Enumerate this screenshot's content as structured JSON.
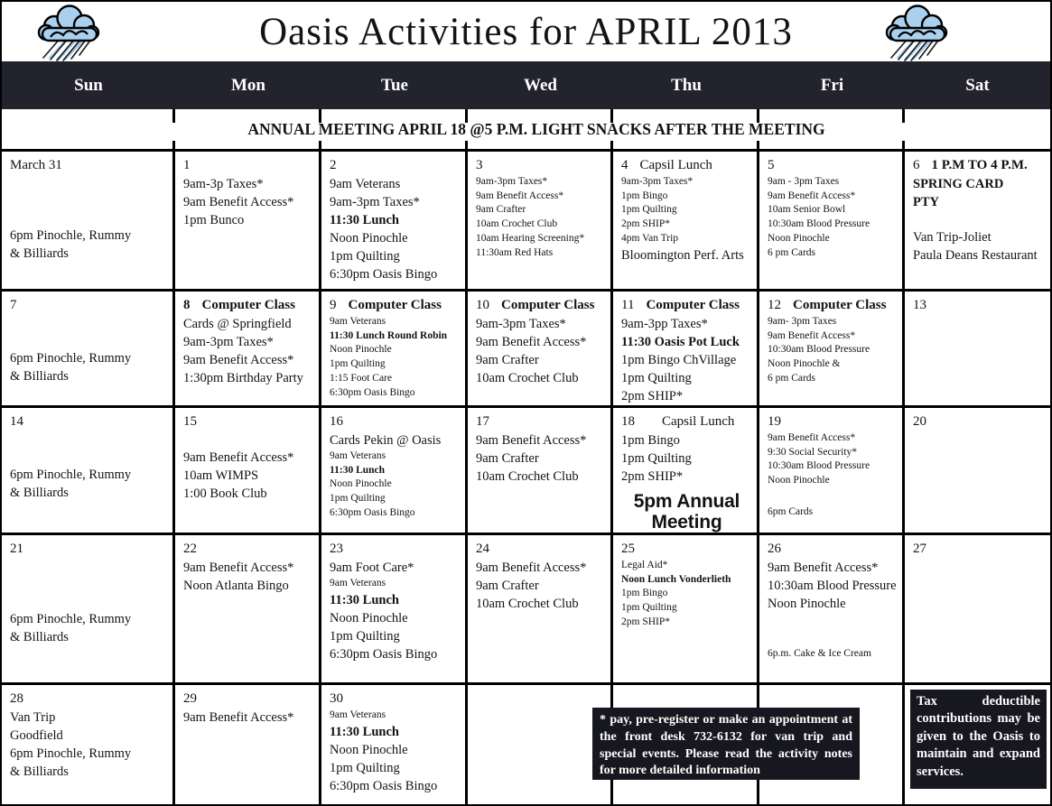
{
  "title": "Oasis Activities for APRIL 2013",
  "banner": "ANNUAL MEETING  APRIL 18  @5 P.M. LIGHT SNACKS AFTER THE MEETING",
  "day_headers": [
    "Sun",
    "Mon",
    "Tue",
    "Wed",
    "Thu",
    "Fri",
    "Sat"
  ],
  "icons": {
    "left": "rain-cloud-icon",
    "right": "rain-cloud-icon"
  },
  "colors": {
    "header_bar": "#23232e",
    "note_box_bg": "#17171f",
    "cloud_blue": "#abd0ee",
    "text": "#131313"
  },
  "notes": {
    "registration": "* pay, pre-register or make an appointment at the front desk 732-6132 for van trip and special events.  Please read the activity notes for more detailed    information"
  },
  "weeks": [
    {
      "cells": [
        {
          "date": "March 31",
          "lines": [
            {
              "t": ""
            },
            {
              "t": ""
            },
            {
              "t": ""
            },
            {
              "t": "6pm Pinochle, Rummy"
            },
            {
              "t": "& Billiards"
            }
          ]
        },
        {
          "date": "1",
          "lines": [
            {
              "t": "9am-3p Taxes*"
            },
            {
              "t": "9am Benefit Access*"
            },
            {
              "t": "1pm Bunco"
            }
          ]
        },
        {
          "date": "2",
          "lines": [
            {
              "t": "9am Veterans"
            },
            {
              "t": "9am-3pm Taxes*"
            },
            {
              "t": "11:30 Lunch",
              "b": true
            },
            {
              "t": "Noon Pinochle"
            },
            {
              "t": "1pm Quilting"
            },
            {
              "t": "6:30pm Oasis Bingo"
            }
          ]
        },
        {
          "date": "3",
          "lines": [
            {
              "t": "9am-3pm Taxes*",
              "s": true
            },
            {
              "t": "9am Benefit Access*",
              "s": true
            },
            {
              "t": "9am Crafter",
              "s": true
            },
            {
              "t": "10am Crochet Club",
              "s": true
            },
            {
              "t": "10am Hearing Screening*",
              "s": true
            },
            {
              "t": "11:30am Red Hats",
              "s": true
            }
          ]
        },
        {
          "date": "4",
          "note": "Capsil Lunch",
          "lines": [
            {
              "t": "9am-3pm Taxes*",
              "s": true
            },
            {
              "t": "1pm Bingo",
              "s": true
            },
            {
              "t": "1pm Quilting",
              "s": true
            },
            {
              "t": "2pm SHIP*",
              "s": true
            },
            {
              "t": "4pm Van Trip",
              "s": true
            },
            {
              "t": "Bloomington Perf. Arts"
            }
          ]
        },
        {
          "date": "5",
          "lines": [
            {
              "t": "9am - 3pm Taxes",
              "s": true
            },
            {
              "t": "9am Benefit Access*",
              "s": true
            },
            {
              "t": "10am Senior Bowl",
              "s": true
            },
            {
              "t": "10:30am Blood Pressure",
              "s": true
            },
            {
              "t": "Noon Pinochle",
              "s": true
            },
            {
              "t": "6 pm Cards",
              "s": true
            }
          ]
        },
        {
          "date": "6",
          "note": "1 P.M TO 4 P.M.",
          "note_bold": true,
          "lines": [
            {
              "t": "SPRING CARD",
              "b": true
            },
            {
              "t": "PTY",
              "b": true
            },
            {
              "t": ""
            },
            {
              "t": "Van Trip-Joliet"
            },
            {
              "t": "Paula Deans Restaurant"
            }
          ]
        }
      ]
    },
    {
      "cells": [
        {
          "date": "7",
          "lines": [
            {
              "t": ""
            },
            {
              "t": ""
            },
            {
              "t": "6pm Pinochle, Rummy"
            },
            {
              "t": "& Billiards"
            }
          ]
        },
        {
          "date": "8",
          "date_bold": true,
          "note": "Computer Class",
          "note_bold": true,
          "lines": [
            {
              "t": "Cards @ Springfield"
            },
            {
              "t": "9am-3pm Taxes*"
            },
            {
              "t": "9am Benefit Access*"
            },
            {
              "t": "1:30pm Birthday Party"
            }
          ]
        },
        {
          "date": "9",
          "note": "Computer Class",
          "note_bold": true,
          "lines": [
            {
              "t": "9am Veterans",
              "s": true
            },
            {
              "t": "11:30 Lunch Round Robin",
              "s": true,
              "b": true
            },
            {
              "t": "Noon Pinochle",
              "s": true
            },
            {
              "t": "1pm Quilting",
              "s": true
            },
            {
              "t": "1:15 Foot Care",
              "s": true
            },
            {
              "t": "6:30pm Oasis Bingo",
              "s": true
            }
          ]
        },
        {
          "date": "10",
          "note": "Computer Class",
          "note_bold": true,
          "lines": [
            {
              "t": "9am-3pm Taxes*"
            },
            {
              "t": "9am Benefit Access*"
            },
            {
              "t": "9am Crafter"
            },
            {
              "t": "10am Crochet Club"
            }
          ]
        },
        {
          "date": "11",
          "note": "Computer Class",
          "note_bold": true,
          "lines": [
            {
              "t": "9am-3pp Taxes*"
            },
            {
              "t": "11:30 Oasis Pot Luck",
              "b": true
            },
            {
              "t": "1pm Bingo ChVillage"
            },
            {
              "t": "1pm Quilting"
            },
            {
              "t": "2pm SHIP*"
            }
          ]
        },
        {
          "date": "12",
          "note": "Computer Class",
          "note_bold": true,
          "lines": [
            {
              "t": "9am- 3pm Taxes",
              "s": true
            },
            {
              "t": "9am Benefit Access*",
              "s": true
            },
            {
              "t": "10:30am Blood Pressure",
              "s": true
            },
            {
              "t": "Noon Pinochle  &",
              "s": true
            },
            {
              "t": "6 pm Cards",
              "s": true
            }
          ]
        },
        {
          "date": "13",
          "lines": []
        }
      ]
    },
    {
      "cells": [
        {
          "date": "14",
          "lines": [
            {
              "t": ""
            },
            {
              "t": ""
            },
            {
              "t": "6pm Pinochle, Rummy"
            },
            {
              "t": "& Billiards"
            }
          ]
        },
        {
          "date": "15",
          "lines": [
            {
              "t": ""
            },
            {
              "t": "9am Benefit Access*"
            },
            {
              "t": "10am WIMPS"
            },
            {
              "t": "1:00 Book Club"
            }
          ]
        },
        {
          "date": "16",
          "lines": [
            {
              "t": "Cards  Pekin @ Oasis"
            },
            {
              "t": "9am Veterans",
              "s": true
            },
            {
              "t": "11:30 Lunch",
              "s": true,
              "b": true
            },
            {
              "t": "Noon Pinochle",
              "s": true
            },
            {
              "t": "1pm Quilting",
              "s": true
            },
            {
              "t": "6:30pm Oasis Bingo",
              "s": true
            }
          ]
        },
        {
          "date": "17",
          "lines": [
            {
              "t": "9am Benefit Access*"
            },
            {
              "t": "9am Crafter"
            },
            {
              "t": "10am Crochet Club"
            }
          ]
        },
        {
          "date": "18",
          "note": "Capsil Lunch",
          "note_wide": true,
          "lines": [
            {
              "t": "1pm Bingo"
            },
            {
              "t": "1pm Quilting"
            },
            {
              "t": "2pm SHIP*"
            }
          ],
          "big_note": "5pm Annual Meeting"
        },
        {
          "date": "19",
          "lines": [
            {
              "t": "9am Benefit Access*",
              "s": true
            },
            {
              "t": "9:30 Social Security*",
              "s": true
            },
            {
              "t": "10:30am Blood Pressure",
              "s": true
            },
            {
              "t": "Noon Pinochle",
              "s": true
            },
            {
              "t": ""
            },
            {
              "t": "6pm Cards",
              "s": true
            }
          ]
        },
        {
          "date": "20",
          "lines": []
        }
      ]
    },
    {
      "cells": [
        {
          "date": "21",
          "lines": [
            {
              "t": ""
            },
            {
              "t": ""
            },
            {
              "t": ""
            },
            {
              "t": "6pm Pinochle, Rummy"
            },
            {
              "t": "& Billiards"
            }
          ]
        },
        {
          "date": "22",
          "lines": [
            {
              "t": "9am Benefit Access*"
            },
            {
              "t": "Noon Atlanta Bingo"
            }
          ]
        },
        {
          "date": "23",
          "lines": [
            {
              "t": "9am Foot Care*"
            },
            {
              "t": "9am Veterans",
              "s": true
            },
            {
              "t": "11:30 Lunch",
              "b": true
            },
            {
              "t": "Noon Pinochle"
            },
            {
              "t": "1pm Quilting"
            },
            {
              "t": "6:30pm Oasis Bingo"
            }
          ]
        },
        {
          "date": "24",
          "lines": [
            {
              "t": "9am Benefit Access*"
            },
            {
              "t": "9am Crafter"
            },
            {
              "t": "10am Crochet Club"
            }
          ]
        },
        {
          "date": "25",
          "lines": [
            {
              "t": "Legal Aid*",
              "s": true
            },
            {
              "t": "Noon  Lunch Vonderlieth",
              "s": true,
              "b": true
            },
            {
              "t": "1pm Bingo",
              "s": true
            },
            {
              "t": "1pm Quilting",
              "s": true
            },
            {
              "t": "2pm SHIP*",
              "s": true
            }
          ]
        },
        {
          "date": "26",
          "lines": [
            {
              "t": "9am Benefit Access*"
            },
            {
              "t": "10:30am Blood Pressure"
            },
            {
              "t": "Noon Pinochle"
            },
            {
              "t": ""
            },
            {
              "t": ""
            },
            {
              "t": "6p.m. Cake & Ice Cream",
              "s": true
            }
          ]
        },
        {
          "date": "27",
          "lines": []
        }
      ]
    },
    {
      "cells": [
        {
          "date": "28",
          "lines": [
            {
              "t": "Van Trip"
            },
            {
              "t": "Goodfield"
            },
            {
              "t": "6pm Pinochle, Rummy"
            },
            {
              "t": "& Billiards"
            }
          ]
        },
        {
          "date": "29",
          "lines": [
            {
              "t": "9am Benefit Access*"
            }
          ]
        },
        {
          "date": "30",
          "lines": [
            {
              "t": "9am Veterans",
              "s": true
            },
            {
              "t": "11:30 Lunch",
              "b": true
            },
            {
              "t": "Noon Pinochle"
            },
            {
              "t": "1pm Quilting"
            },
            {
              "t": "6:30pm Oasis Bingo"
            }
          ]
        },
        {
          "lines": []
        },
        {
          "lines": []
        },
        {
          "lines": []
        },
        {
          "box_note": "Tax  deductible contributions may be given to the Oasis to maintain and expand services."
        }
      ]
    }
  ]
}
